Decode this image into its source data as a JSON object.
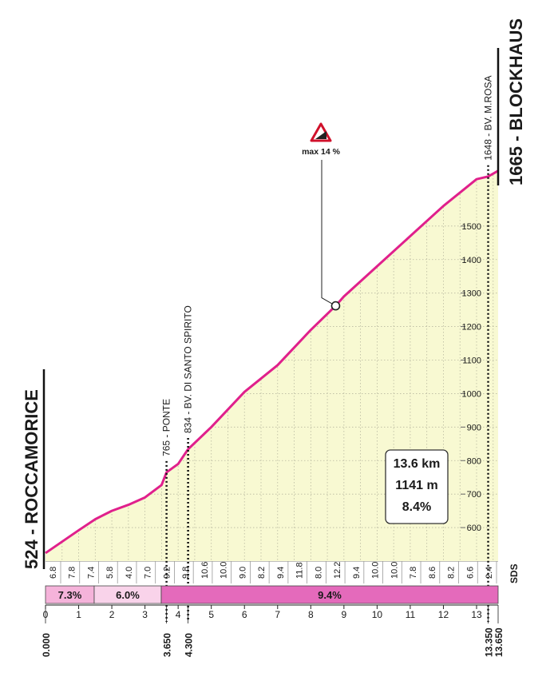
{
  "chart_data": {
    "type": "area",
    "start_label": "524 - ROCCAMORICE",
    "end_label": "1665 - BLOCKHAUS",
    "brand": "SDS",
    "x": [
      0,
      0.5,
      1,
      1.5,
      2,
      2.5,
      3,
      3.5,
      3.65,
      4,
      4.3,
      5,
      6,
      7,
      8,
      8.75,
      9,
      10,
      11,
      12,
      12.5,
      13,
      13.35,
      13.65
    ],
    "series": [
      {
        "name": "profile",
        "color": "#e0208c",
        "values": [
          524,
          558,
          592,
          625,
          650,
          668,
          690,
          727,
          765,
          790,
          834,
          900,
          1005,
          1085,
          1190,
          1262,
          1290,
          1380,
          1470,
          1560,
          1600,
          1640,
          1648,
          1665
        ]
      }
    ],
    "fill_color": "#f8f9d2",
    "xlim": [
      0,
      13.65
    ],
    "ylim": [
      500,
      1700
    ],
    "xticks": [
      0,
      1,
      2,
      3,
      4,
      5,
      6,
      7,
      8,
      9,
      10,
      11,
      12,
      13
    ],
    "yticks": [
      600,
      700,
      800,
      900,
      1000,
      1100,
      1200,
      1300,
      1400,
      1500
    ],
    "grid": true,
    "distance_marks": [
      {
        "value": 0,
        "label": "0.000"
      },
      {
        "value": 3.65,
        "label": "3.650"
      },
      {
        "value": 4.3,
        "label": "4.300"
      },
      {
        "value": 13.35,
        "label": "13.350"
      },
      {
        "value": 13.65,
        "label": "13.650"
      }
    ],
    "waypoints": [
      {
        "x": 3.65,
        "label": "765 - PONTE"
      },
      {
        "x": 4.3,
        "label": "834 - BV. DI SANTO SPIRITO"
      },
      {
        "x": 13.35,
        "label": "1648 - BV. M.ROSA"
      }
    ],
    "max_marker": {
      "label": "max 14 %",
      "x": 8.75,
      "y": 1262
    },
    "stats": [
      "13.6 km",
      "1141 m",
      "8.4%"
    ],
    "segment_gradients": [
      6.8,
      7.8,
      7.4,
      5.8,
      4.0,
      7.0,
      9.2,
      9.8,
      10.6,
      10.0,
      9.0,
      8.2,
      9.4,
      11.8,
      8.0,
      12.2,
      9.4,
      10.0,
      10.0,
      7.8,
      8.6,
      8.2,
      6.6,
      2.4
    ],
    "segment_gradient_labels": [
      "6.8",
      "7.8",
      "7.4",
      "5.8",
      "4.0",
      "7.0",
      "9.2",
      "9.8",
      "10.6",
      "10.0",
      "9.0",
      "8.2",
      "9.4",
      "11.8",
      "8.0",
      "12.2",
      "9.4",
      "10.0",
      "10.0",
      "7.8",
      "8.6",
      "8.2",
      "6.6",
      "2.4"
    ],
    "gradient_bands": [
      {
        "value": 7.3,
        "label": "7.3%",
        "color": "#f5b3da"
      },
      {
        "value": 6.0,
        "label": "6.0%",
        "color": "#f9d3ea"
      },
      {
        "value": 9.4,
        "label": "9.4%",
        "color": "#e46abb"
      }
    ]
  }
}
